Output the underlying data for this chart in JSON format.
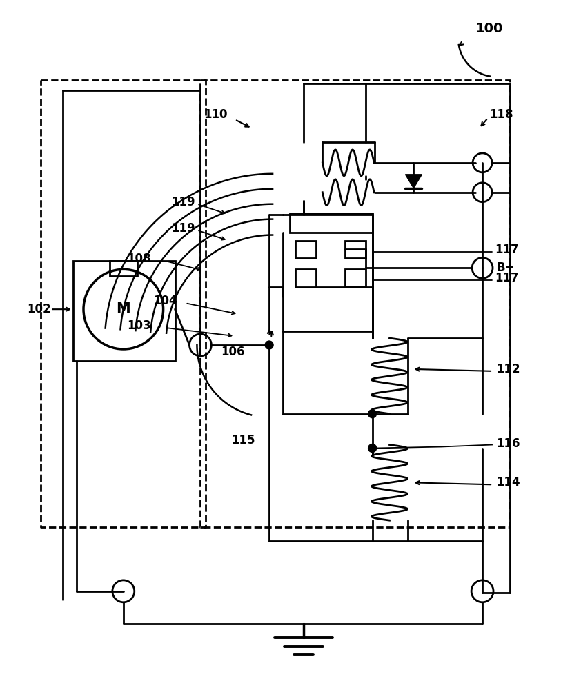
{
  "bg": "#ffffff",
  "lc": "#000000",
  "fig_w": 8.42,
  "fig_h": 10.0,
  "lw": 2.0
}
